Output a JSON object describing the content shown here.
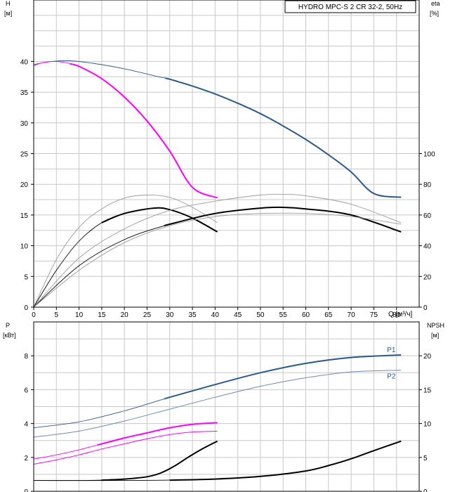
{
  "chart_data": [
    {
      "type": "line",
      "title": "HYDRO MPC-S 2 CR 32-2, 50Hz",
      "xlabel": "Q [м³/ч]",
      "xlim": [
        0,
        85
      ],
      "x_ticks": [
        0,
        5,
        10,
        15,
        20,
        25,
        30,
        35,
        40,
        45,
        50,
        55,
        60,
        65,
        70,
        75,
        80
      ],
      "y_left_label": [
        "H",
        "[м]"
      ],
      "y_left_lim": [
        0,
        50
      ],
      "y_left_ticks": [
        0,
        5,
        10,
        15,
        20,
        25,
        30,
        35,
        40
      ],
      "y_right_label": [
        "eta",
        "[%]"
      ],
      "y_right_lim": [
        0,
        200
      ],
      "y_right_ticks": [
        0,
        20,
        40,
        60,
        80,
        100
      ],
      "grid": true,
      "colors": {
        "blue": "#2b5a8a",
        "blue_thin": "#6a8cb0",
        "magenta": "#ff00ff",
        "black": "#000000",
        "gray": "#9a9a9a"
      },
      "series": [
        {
          "axis": "left",
          "color": "blue",
          "thin_until": 29,
          "x": [
            0,
            4,
            8,
            13,
            20,
            27,
            30,
            35,
            40,
            45,
            50,
            55,
            60,
            65,
            70,
            75,
            81
          ],
          "y": [
            39.5,
            40,
            40.1,
            39.7,
            38.8,
            37.6,
            37.1,
            36,
            34.7,
            33.2,
            31.5,
            29.5,
            27.3,
            24.8,
            22,
            18.5,
            17.9
          ]
        },
        {
          "axis": "left",
          "color": "magenta",
          "thin_until": 8,
          "x": [
            0,
            2,
            4.5,
            7,
            10,
            15,
            20,
            25,
            30,
            35,
            40.5
          ],
          "y": [
            39.3,
            39.8,
            40,
            39.8,
            39.2,
            37.2,
            34.2,
            30.3,
            25.4,
            19.5,
            17.8
          ]
        },
        {
          "axis": "right",
          "color": "gray",
          "x": [
            0,
            5,
            10,
            15,
            20,
            25,
            30,
            35,
            40.5
          ],
          "y": [
            0,
            31,
            52,
            64,
            71,
            73,
            71.5,
            65,
            55
          ]
        },
        {
          "axis": "right",
          "color": "black",
          "thin_until": 15,
          "x": [
            0,
            5,
            10,
            15,
            20,
            26.5,
            30,
            35,
            40.5
          ],
          "y": [
            0,
            24,
            43,
            55,
            61,
            64.5,
            63.5,
            58,
            49
          ]
        },
        {
          "axis": "right",
          "color": "gray",
          "x": [
            0,
            10,
            20,
            30,
            40,
            50,
            55,
            60,
            70,
            81
          ],
          "y": [
            0,
            32,
            51,
            63,
            69,
            73,
            73.5,
            72.5,
            67,
            55
          ]
        },
        {
          "axis": "right",
          "color": "black",
          "thin_until": 29,
          "x": [
            0,
            10,
            20,
            30,
            40,
            50,
            55,
            60,
            70,
            81
          ],
          "y": [
            0,
            27,
            44,
            54,
            61,
            64.5,
            65,
            64,
            60,
            49
          ]
        },
        {
          "axis": "right",
          "color": "gray",
          "x": [
            0,
            10,
            20,
            30,
            40,
            50,
            60,
            70,
            81
          ],
          "y": [
            0,
            24,
            42,
            53,
            59,
            61,
            61,
            59,
            54
          ]
        }
      ]
    },
    {
      "type": "line",
      "xlim": [
        0,
        85
      ],
      "y_left_label": [
        "P",
        "[кВт]"
      ],
      "y_left_lim": [
        0,
        10
      ],
      "y_left_ticks": [
        0,
        2,
        4,
        6,
        8
      ],
      "y_right_label": [
        "NPSH",
        "[м]"
      ],
      "y_right_lim": [
        0,
        25
      ],
      "y_right_ticks": [
        0,
        5,
        10,
        15,
        20
      ],
      "grid": true,
      "series": [
        {
          "name": "P1",
          "axis": "left",
          "color": "blue",
          "thin_until": 29,
          "x": [
            0,
            10,
            20,
            30,
            40,
            50,
            60,
            70,
            81
          ],
          "y": [
            3.75,
            4.1,
            4.75,
            5.55,
            6.3,
            7,
            7.55,
            7.9,
            8.05
          ]
        },
        {
          "name": "P2",
          "axis": "left",
          "color": "blue_thin",
          "x": [
            0,
            10,
            20,
            30,
            40,
            50,
            60,
            70,
            81
          ],
          "y": [
            3.2,
            3.55,
            4.15,
            4.85,
            5.55,
            6.2,
            6.7,
            7.05,
            7.15
          ]
        },
        {
          "axis": "left",
          "color": "magenta",
          "thin_until": 14,
          "x": [
            0,
            5,
            10,
            15,
            20,
            25,
            30,
            35,
            40.5
          ],
          "y": [
            1.9,
            2.15,
            2.45,
            2.8,
            3.15,
            3.45,
            3.75,
            3.95,
            4.05
          ]
        },
        {
          "axis": "left",
          "color": "magenta",
          "thin": true,
          "x": [
            0,
            5,
            10,
            15,
            20,
            25,
            30,
            35,
            40.5
          ],
          "y": [
            1.6,
            1.85,
            2.15,
            2.5,
            2.8,
            3.1,
            3.35,
            3.5,
            3.55
          ]
        },
        {
          "axis": "right",
          "color": "black",
          "thin_until": 15,
          "x": [
            0,
            10,
            15,
            20,
            25,
            28,
            31,
            34,
            37,
            40.5
          ],
          "y": [
            1.6,
            1.6,
            1.65,
            1.8,
            2.15,
            2.7,
            3.7,
            5,
            6.2,
            7.4
          ]
        },
        {
          "axis": "right",
          "color": "black",
          "thin_until": 30,
          "x": [
            0,
            20,
            30,
            40,
            50,
            60,
            65,
            70,
            75,
            81
          ],
          "y": [
            1.6,
            1.6,
            1.65,
            1.8,
            2.2,
            3,
            3.8,
            4.8,
            6,
            7.4
          ]
        }
      ]
    }
  ]
}
